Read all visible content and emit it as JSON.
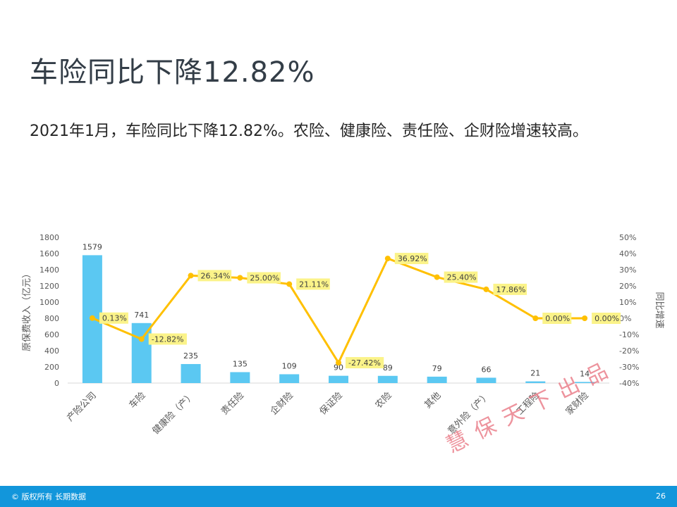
{
  "slide": {
    "title": "车险同比下降12.82%",
    "body": "2021年1月，车险同比下降12.82%。农险、健康险、责任险、企财险增速较高。",
    "watermark": "慧保天下出品"
  },
  "footer": {
    "copyright": "© 版权所有 长期数据",
    "page_number": "26"
  },
  "colors": {
    "bar": "#5bc8f2",
    "line": "#ffc000",
    "label_bg": "#fbf389",
    "footer": "#1296db"
  },
  "chart_data": {
    "type": "bar+line",
    "categories": [
      "产险公司",
      "车险",
      "健康险（产）",
      "责任险",
      "企财险",
      "保证险",
      "农险",
      "其他",
      "意外险（产）",
      "工程险",
      "家财险"
    ],
    "series": [
      {
        "type": "bar",
        "axis": "left",
        "values": [
          1579,
          741,
          235,
          135,
          109,
          90,
          89,
          79,
          66,
          21,
          14
        ],
        "labels": [
          "1579",
          "741",
          "235",
          "135",
          "109",
          "90",
          "89",
          "79",
          "66",
          "21",
          "14"
        ]
      },
      {
        "type": "line",
        "axis": "right",
        "values": [
          0.13,
          -12.82,
          26.34,
          25.0,
          21.11,
          -27.42,
          36.92,
          25.4,
          17.86,
          0.0,
          0.0
        ],
        "labels": [
          "0.13%",
          "-12.82%",
          "26.34%",
          "25.00%",
          "21.11%",
          "-27.42%",
          "36.92%",
          "25.40%",
          "17.86%",
          "0.00%",
          "0.00%"
        ]
      }
    ],
    "ylabel": "原保费收入（亿元）",
    "y2label": "同比增速",
    "ylim": [
      0,
      1800
    ],
    "y2lim": [
      -40,
      50
    ],
    "yticks": [
      "0",
      "200",
      "400",
      "600",
      "800",
      "1000",
      "1200",
      "1400",
      "1600",
      "1800"
    ],
    "y2ticks": [
      "-40%",
      "-30%",
      "-20%",
      "-10%",
      "0%",
      "10%",
      "20%",
      "30%",
      "40%",
      "50%"
    ],
    "grid": false,
    "legend": "none"
  }
}
